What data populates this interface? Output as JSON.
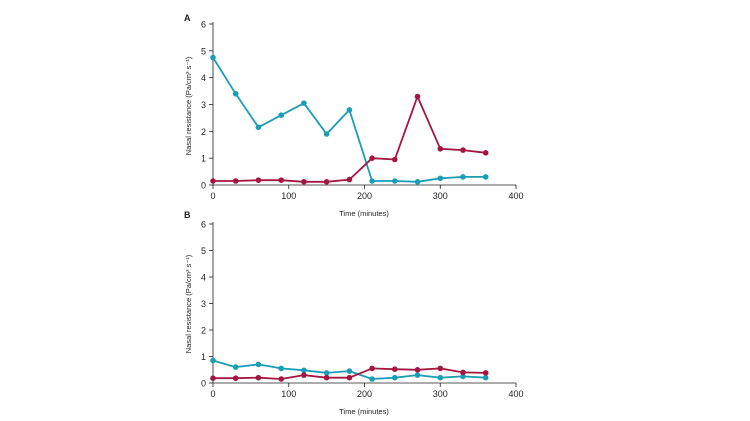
{
  "colors": {
    "series_a": "#1a9db5",
    "series_b": "#a3163f",
    "axis": "#231f20"
  },
  "chart_data": [
    {
      "type": "line",
      "panel_label": "A",
      "xlabel": "Time (minutes)",
      "ylabel": "Nasal resistance (Pa/cm³ s⁻¹)",
      "xlim": [
        0,
        400
      ],
      "ylim": [
        0,
        6
      ],
      "xticks": [
        0,
        100,
        200,
        300,
        400
      ],
      "yticks": [
        0,
        1,
        2,
        3,
        4,
        5,
        6
      ],
      "grid": false,
      "series": [
        {
          "name": "blue",
          "color": "#1a9db5",
          "x": [
            0,
            30,
            60,
            90,
            120,
            150,
            180,
            210,
            240,
            270,
            300,
            330,
            360
          ],
          "y": [
            4.75,
            3.4,
            2.15,
            2.6,
            3.05,
            1.9,
            2.8,
            0.15,
            0.15,
            0.12,
            0.25,
            0.3,
            0.3
          ]
        },
        {
          "name": "red",
          "color": "#a3163f",
          "x": [
            0,
            30,
            60,
            90,
            120,
            150,
            180,
            210,
            240,
            270,
            300,
            330,
            360
          ],
          "y": [
            0.15,
            0.15,
            0.18,
            0.18,
            0.12,
            0.12,
            0.2,
            1.0,
            0.95,
            3.3,
            1.35,
            1.3,
            1.2
          ]
        }
      ]
    },
    {
      "type": "line",
      "panel_label": "B",
      "xlabel": "Time (minutes)",
      "ylabel": "Nasal resistance (Pa/cm³ s⁻¹)",
      "xlim": [
        0,
        400
      ],
      "ylim": [
        0,
        6
      ],
      "xticks": [
        0,
        100,
        200,
        300,
        400
      ],
      "yticks": [
        0,
        1,
        2,
        3,
        4,
        5,
        6
      ],
      "grid": false,
      "series": [
        {
          "name": "blue",
          "color": "#1a9db5",
          "x": [
            0,
            30,
            60,
            90,
            120,
            150,
            180,
            210,
            240,
            270,
            300,
            330,
            360
          ],
          "y": [
            0.85,
            0.6,
            0.7,
            0.55,
            0.48,
            0.38,
            0.45,
            0.15,
            0.2,
            0.3,
            0.2,
            0.25,
            0.2
          ]
        },
        {
          "name": "red",
          "color": "#a3163f",
          "x": [
            0,
            30,
            60,
            90,
            120,
            150,
            180,
            210,
            240,
            270,
            300,
            330,
            360
          ],
          "y": [
            0.18,
            0.18,
            0.2,
            0.15,
            0.3,
            0.2,
            0.2,
            0.55,
            0.52,
            0.5,
            0.55,
            0.4,
            0.38
          ]
        }
      ]
    }
  ]
}
